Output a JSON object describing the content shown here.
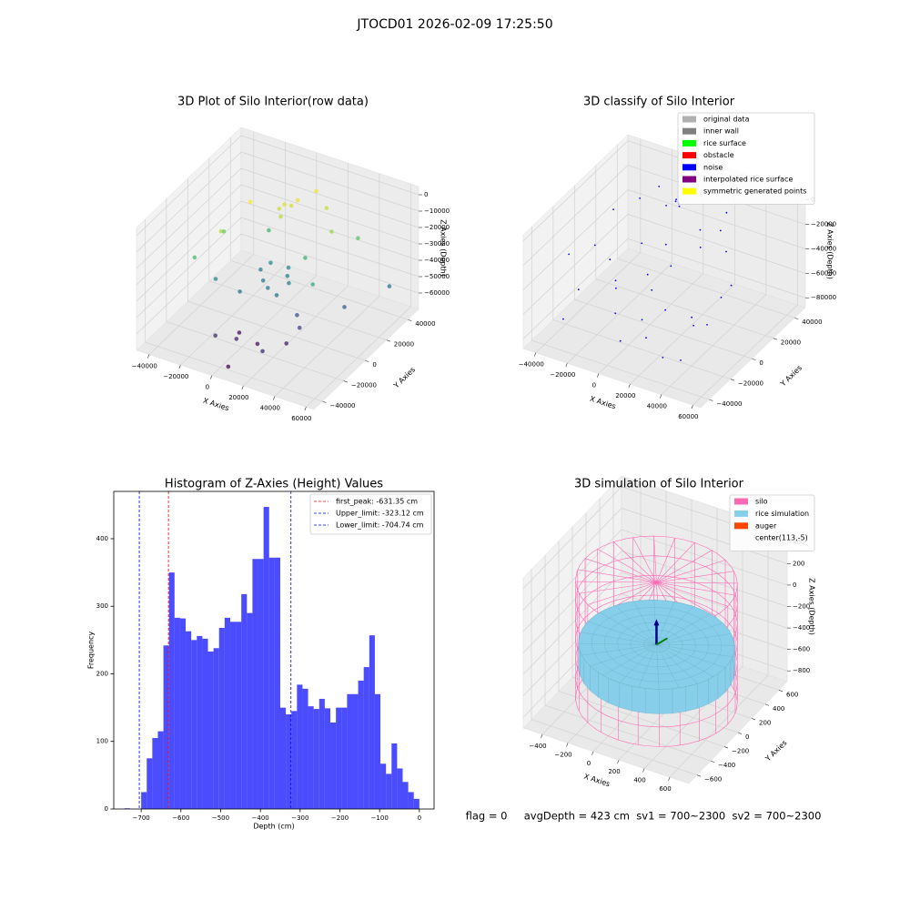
{
  "title": "JTOCD01 2026-02-09 17:25:50",
  "status": "flag = 0     avgDepth = 423 cm  sv1 = 700~2300  sv2 = 700~2300",
  "chart_data": [
    {
      "type": "scatter3d",
      "title": "3D Plot of Silo Interior(row data)",
      "xlabel": "X Axies",
      "ylabel": "Y Axies",
      "zlabel": "Z Axies (Depth)",
      "xlim": [
        -48000,
        65000
      ],
      "ylim": [
        -48000,
        50000
      ],
      "zlim": [
        -70000,
        5000
      ],
      "xticks": [
        {
          "value": -40000,
          "label": "−40000"
        },
        {
          "value": -20000,
          "label": "−20000"
        },
        0,
        20000,
        40000,
        60000
      ],
      "yticks": [
        {
          "value": -40000,
          "label": "−40000"
        },
        {
          "value": -20000,
          "label": "−20000"
        },
        0,
        20000,
        40000
      ],
      "zticks": [
        0,
        {
          "value": -10000,
          "label": "−10000"
        },
        {
          "value": -20000,
          "label": "−20000"
        },
        {
          "value": -30000,
          "label": "−30000"
        },
        {
          "value": -40000,
          "label": "−40000"
        },
        {
          "value": -50000,
          "label": "−50000"
        },
        {
          "value": -60000,
          "label": "−60000"
        }
      ],
      "colormap": "viridis",
      "x": [
        0,
        3000,
        -2000,
        5000,
        1000,
        -20000,
        20000,
        30000,
        -15000,
        10000,
        -30000,
        -25000,
        20000,
        40000,
        -10000,
        35000,
        -20000,
        -5000,
        0,
        5000,
        10000,
        -8000,
        15000,
        60000,
        12000,
        -2000,
        8000,
        30000,
        25000,
        45000,
        -10000,
        0,
        10000,
        20000,
        5000,
        -5000,
        25000
      ],
      "y": [
        20000,
        22000,
        18000,
        25000,
        15000,
        -10000,
        30000,
        20000,
        10000,
        35000,
        -20000,
        0,
        10000,
        30000,
        20000,
        -5000,
        -15000,
        5000,
        0,
        -3000,
        8000,
        -10000,
        2000,
        30000,
        -5000,
        10000,
        12000,
        -10000,
        -5000,
        10000,
        -30000,
        -25000,
        -20000,
        -30000,
        -40000,
        -15000,
        -15000
      ],
      "z": [
        -8000,
        -9000,
        -10000,
        -7000,
        -12000,
        -12000,
        -10000,
        -15000,
        -5000,
        -6000,
        -25000,
        -20000,
        -28000,
        -22000,
        -27000,
        -30000,
        -38000,
        -40000,
        -42000,
        -43000,
        -41000,
        -45000,
        -40000,
        -45000,
        -44000,
        -38000,
        -39000,
        -55000,
        -52000,
        -50000,
        -60000,
        -62000,
        -65000,
        -60000,
        -68000,
        -66000,
        -63000
      ]
    },
    {
      "type": "scatter3d",
      "title": "3D classify of Silo Interior",
      "xlabel": "X Axies",
      "ylabel": "Y Axies",
      "zlabel": "Z Axies (Depth)",
      "xlim": [
        -48000,
        65000
      ],
      "ylim": [
        -48000,
        50000
      ],
      "zlim": [
        -88000,
        5000
      ],
      "xticks": [
        {
          "value": -40000,
          "label": "−40000"
        },
        {
          "value": -20000,
          "label": "−20000"
        },
        0,
        20000,
        40000,
        60000
      ],
      "yticks": [
        {
          "value": -40000,
          "label": "−40000"
        },
        {
          "value": -20000,
          "label": "−20000"
        },
        0,
        20000,
        40000
      ],
      "zticks": [
        0,
        {
          "value": -20000,
          "label": "−20000"
        },
        {
          "value": -40000,
          "label": "−40000"
        },
        {
          "value": -60000,
          "label": "−60000"
        },
        {
          "value": -80000,
          "label": "−80000"
        }
      ],
      "legend": [
        {
          "name": "original data",
          "color": "#b0b0b0"
        },
        {
          "name": "inner wall",
          "color": "#808080"
        },
        {
          "name": "rice surface",
          "color": "#00ff00"
        },
        {
          "name": "obstacle",
          "color": "#ff0000"
        },
        {
          "name": "noise",
          "color": "#0000ff"
        },
        {
          "name": "interpolated rice surface",
          "color": "#800080"
        },
        {
          "name": "symmetric generated points",
          "color": "#ffff00"
        }
      ],
      "point_color": "#0000ff",
      "x": [
        -38000,
        -30000,
        -25000,
        -20000,
        -15000,
        -10000,
        -5000,
        0,
        5000,
        10000,
        15000,
        20000,
        25000,
        30000,
        35000,
        40000,
        45000,
        50000,
        -35000,
        -28000,
        -18000,
        -8000,
        2000,
        12000,
        22000,
        32000,
        42000,
        -22000,
        -12000,
        8000,
        18000,
        28000,
        38000,
        -2000,
        -4000,
        -3000,
        -1000,
        -5000
      ],
      "y": [
        -20000,
        10000,
        -30000,
        20000,
        -10000,
        30000,
        -25000,
        15000,
        -35000,
        5000,
        25000,
        -15000,
        35000,
        -5000,
        20000,
        -30000,
        10000,
        -20000,
        0,
        -40000,
        35000,
        -20000,
        -5000,
        -25000,
        15000,
        -35000,
        5000,
        -5000,
        10000,
        -10000,
        -30000,
        25000,
        -15000,
        30000,
        30000,
        31000,
        29000,
        32000
      ],
      "z": [
        -30000,
        -15000,
        -45000,
        -10000,
        -50000,
        -20000,
        -60000,
        -35000,
        -70000,
        -40000,
        -25000,
        -55000,
        -15000,
        -65000,
        -30000,
        -75000,
        -45000,
        -50000,
        -38000,
        -62000,
        -12000,
        -45000,
        -42000,
        -58000,
        -28000,
        -72000,
        -52000,
        -40000,
        -35000,
        -48000,
        -66000,
        -20000,
        -60000,
        -15000,
        -14000,
        -15000,
        -16000,
        -14500
      ]
    },
    {
      "type": "histogram",
      "title": "Histogram of Z-Axies (Height) Values",
      "xlabel": "Depth (cm)",
      "ylabel": "Frequency",
      "color": "#0000ff",
      "alpha": 0.7,
      "xlim": [
        -769,
        37
      ],
      "ylim": [
        0,
        470
      ],
      "xticks": [
        {
          "value": -700,
          "label": "−700"
        },
        {
          "value": -600,
          "label": "−600"
        },
        {
          "value": -500,
          "label": "−500"
        },
        {
          "value": -400,
          "label": "−400"
        },
        {
          "value": -300,
          "label": "−300"
        },
        {
          "value": -200,
          "label": "−200"
        },
        {
          "value": -100,
          "label": "−100"
        },
        0
      ],
      "yticks": [
        0,
        100,
        200,
        300,
        400
      ],
      "bins": [
        -742,
        -728,
        -714,
        -700,
        -686,
        -672,
        -658,
        -644,
        -630,
        -616,
        -602,
        -588,
        -574,
        -560,
        -546,
        -532,
        -518,
        -504,
        -490,
        -476,
        -462,
        -448,
        -434,
        -420,
        -406,
        -392,
        -378,
        -364,
        -350,
        -336,
        -322,
        -308,
        -294,
        -280,
        -266,
        -252,
        -238,
        -224,
        -210,
        -196,
        -182,
        -168,
        -154,
        -140,
        -126,
        -112,
        -98,
        -84,
        -70,
        -56,
        -42,
        -28,
        -14,
        0
      ],
      "counts": [
        1,
        0,
        0,
        25,
        75,
        105,
        115,
        242,
        350,
        283,
        282,
        263,
        250,
        256,
        252,
        233,
        238,
        268,
        283,
        277,
        277,
        318,
        290,
        370,
        370,
        447,
        372,
        372,
        150,
        140,
        145,
        184,
        178,
        152,
        148,
        163,
        149,
        128,
        150,
        150,
        170,
        170,
        190,
        210,
        257,
        170,
        67,
        52,
        97,
        60,
        40,
        25,
        15
      ],
      "vlines": [
        {
          "label": "first_peak: -631.35 cm",
          "value": -631.35,
          "color": "#ff0000"
        },
        {
          "label": "Upper_limit: -323.12 cm",
          "value": -323.12,
          "color": "#0000ff"
        },
        {
          "label": "Lower_limit: -704.74 cm",
          "value": -704.74,
          "color": "#0000ff"
        }
      ]
    },
    {
      "type": "silo3d",
      "title": "3D simulation of Silo Interior",
      "xlabel": "X Axies",
      "ylabel": "Y Axies",
      "zlabel": "Z Axies (Depth)",
      "xlim": [
        -550,
        750
      ],
      "ylim": [
        -720,
        720
      ],
      "zlim": [
        -900,
        500
      ],
      "xticks": [
        {
          "value": -400,
          "label": "−400"
        },
        {
          "value": -200,
          "label": "−200"
        },
        0,
        200,
        400,
        600
      ],
      "yticks": [
        {
          "value": -600,
          "label": "−600"
        },
        {
          "value": -400,
          "label": "−400"
        },
        {
          "value": -200,
          "label": "−200"
        },
        0,
        200,
        400,
        600
      ],
      "zticks": [
        400,
        200,
        0,
        {
          "value": -200,
          "label": "−200"
        },
        {
          "value": -400,
          "label": "−400"
        },
        {
          "value": -600,
          "label": "−600"
        },
        {
          "value": -800,
          "label": "−800"
        }
      ],
      "legend": [
        {
          "name": "silo",
          "color": "#ff69b4"
        },
        {
          "name": "rice simulation",
          "color": "#87ceeb"
        },
        {
          "name": "auger",
          "color": "#ff4500"
        },
        {
          "name": "center(113,-5)"
        }
      ],
      "center": [
        113,
        -5
      ],
      "silo": {
        "radius": 560,
        "zlim": [
          -850,
          250
        ]
      },
      "rice": {
        "radius": 540,
        "top": -330,
        "bottom": -560
      }
    }
  ]
}
